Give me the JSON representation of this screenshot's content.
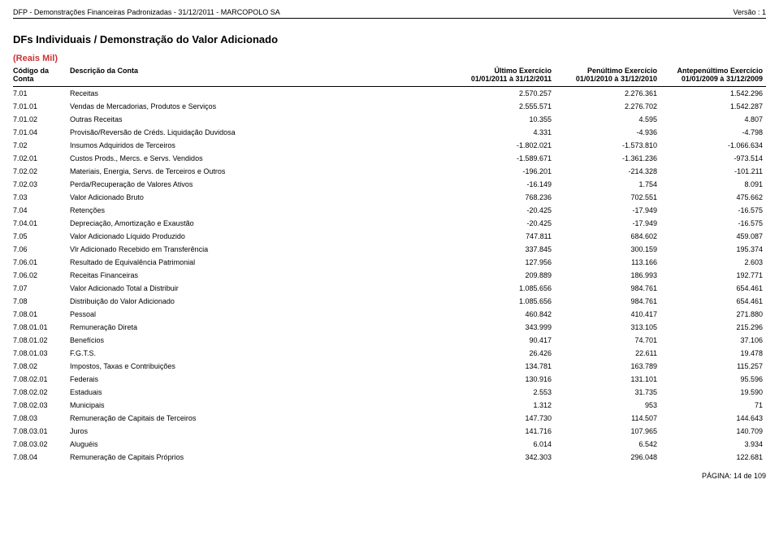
{
  "meta": {
    "top_left": "DFP - Demonstrações Financeiras Padronizadas - 31/12/2011 - MARCOPOLO SA",
    "top_right": "Versão : 1",
    "section_title": "DFs Individuais / Demonstração do Valor Adicionado",
    "unit_label": "(Reais Mil)",
    "footer": "PÁGINA: 14 de 109"
  },
  "columns": {
    "code": "Código da\nConta",
    "desc": "Descrição da Conta",
    "v1_line1": "Último Exercício",
    "v1_line2": "01/01/2011 à 31/12/2011",
    "v2_line1": "Penúltimo Exercício",
    "v2_line2": "01/01/2010 à 31/12/2010",
    "v3_line1": "Antepenúltimo Exercício",
    "v3_line2": "01/01/2009 à 31/12/2009"
  },
  "rows": [
    {
      "code": "7.01",
      "desc": "Receitas",
      "v1": "2.570.257",
      "v2": "2.276.361",
      "v3": "1.542.296"
    },
    {
      "code": "7.01.01",
      "desc": "Vendas de Mercadorias, Produtos e Serviços",
      "v1": "2.555.571",
      "v2": "2.276.702",
      "v3": "1.542.287"
    },
    {
      "code": "7.01.02",
      "desc": "Outras Receitas",
      "v1": "10.355",
      "v2": "4.595",
      "v3": "4.807"
    },
    {
      "code": "7.01.04",
      "desc": "Provisão/Reversão de Créds. Liquidação Duvidosa",
      "v1": "4.331",
      "v2": "-4.936",
      "v3": "-4.798"
    },
    {
      "code": "7.02",
      "desc": "Insumos Adquiridos de Terceiros",
      "v1": "-1.802.021",
      "v2": "-1.573.810",
      "v3": "-1.066.634"
    },
    {
      "code": "7.02.01",
      "desc": "Custos Prods., Mercs. e Servs. Vendidos",
      "v1": "-1.589.671",
      "v2": "-1.361.236",
      "v3": "-973.514"
    },
    {
      "code": "7.02.02",
      "desc": "Materiais, Energia, Servs. de Terceiros e Outros",
      "v1": "-196.201",
      "v2": "-214.328",
      "v3": "-101.211"
    },
    {
      "code": "7.02.03",
      "desc": "Perda/Recuperação de Valores Ativos",
      "v1": "-16.149",
      "v2": "1.754",
      "v3": "8.091"
    },
    {
      "code": "7.03",
      "desc": "Valor Adicionado Bruto",
      "v1": "768.236",
      "v2": "702.551",
      "v3": "475.662"
    },
    {
      "code": "7.04",
      "desc": "Retenções",
      "v1": "-20.425",
      "v2": "-17.949",
      "v3": "-16.575"
    },
    {
      "code": "7.04.01",
      "desc": "Depreciação, Amortização e Exaustão",
      "v1": "-20.425",
      "v2": "-17.949",
      "v3": "-16.575"
    },
    {
      "code": "7.05",
      "desc": "Valor Adicionado Líquido Produzido",
      "v1": "747.811",
      "v2": "684.602",
      "v3": "459.087"
    },
    {
      "code": "7.06",
      "desc": "Vlr Adicionado Recebido em Transferência",
      "v1": "337.845",
      "v2": "300.159",
      "v3": "195.374"
    },
    {
      "code": "7.06.01",
      "desc": "Resultado de Equivalência Patrimonial",
      "v1": "127.956",
      "v2": "113.166",
      "v3": "2.603"
    },
    {
      "code": "7.06.02",
      "desc": "Receitas Financeiras",
      "v1": "209.889",
      "v2": "186.993",
      "v3": "192.771"
    },
    {
      "code": "7.07",
      "desc": "Valor Adicionado Total a Distribuir",
      "v1": "1.085.656",
      "v2": "984.761",
      "v3": "654.461"
    },
    {
      "code": "7.08",
      "desc": "Distribuição do Valor Adicionado",
      "v1": "1.085.656",
      "v2": "984.761",
      "v3": "654.461"
    },
    {
      "code": "7.08.01",
      "desc": "Pessoal",
      "v1": "460.842",
      "v2": "410.417",
      "v3": "271.880"
    },
    {
      "code": "7.08.01.01",
      "desc": "Remuneração Direta",
      "v1": "343.999",
      "v2": "313.105",
      "v3": "215.296"
    },
    {
      "code": "7.08.01.02",
      "desc": "Benefícios",
      "v1": "90.417",
      "v2": "74.701",
      "v3": "37.106"
    },
    {
      "code": "7.08.01.03",
      "desc": "F.G.T.S.",
      "v1": "26.426",
      "v2": "22.611",
      "v3": "19.478"
    },
    {
      "code": "7.08.02",
      "desc": "Impostos, Taxas e Contribuições",
      "v1": "134.781",
      "v2": "163.789",
      "v3": "115.257"
    },
    {
      "code": "7.08.02.01",
      "desc": "Federais",
      "v1": "130.916",
      "v2": "131.101",
      "v3": "95.596"
    },
    {
      "code": "7.08.02.02",
      "desc": "Estaduais",
      "v1": "2.553",
      "v2": "31.735",
      "v3": "19.590"
    },
    {
      "code": "7.08.02.03",
      "desc": "Municipais",
      "v1": "1.312",
      "v2": "953",
      "v3": "71"
    },
    {
      "code": "7.08.03",
      "desc": "Remuneração de Capitais de Terceiros",
      "v1": "147.730",
      "v2": "114.507",
      "v3": "144.643"
    },
    {
      "code": "7.08.03.01",
      "desc": "Juros",
      "v1": "141.716",
      "v2": "107.965",
      "v3": "140.709"
    },
    {
      "code": "7.08.03.02",
      "desc": "Aluguéis",
      "v1": "6.014",
      "v2": "6.542",
      "v3": "3.934"
    },
    {
      "code": "7.08.04",
      "desc": "Remuneração de Capitais Próprios",
      "v1": "342.303",
      "v2": "296.048",
      "v3": "122.681"
    }
  ]
}
